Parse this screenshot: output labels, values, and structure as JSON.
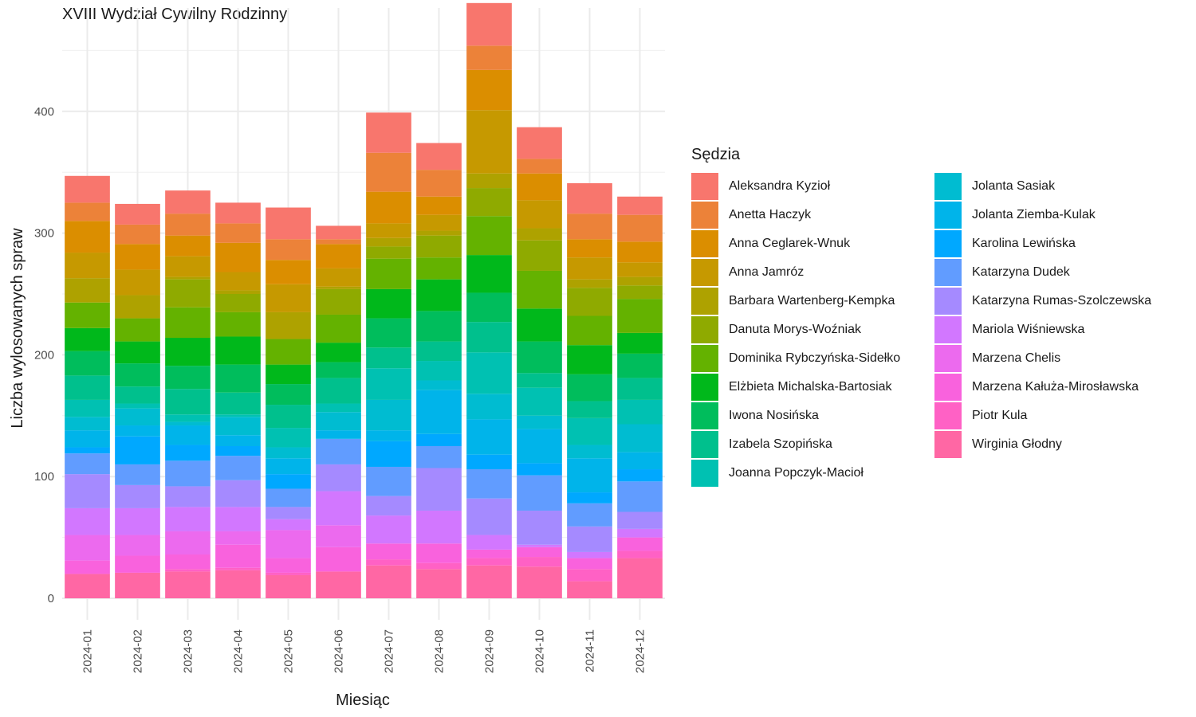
{
  "chart_data": {
    "type": "bar",
    "stacked": true,
    "title": "XVIII Wydział Cywilny Rodzinny",
    "xlabel": "Miesiąc",
    "ylabel": "Liczba wylosowanych spraw",
    "ylim": [
      0,
      480
    ],
    "yticks": [
      0,
      100,
      200,
      300,
      400
    ],
    "grid": true,
    "legend_title": "Sędzia",
    "legend_position": "right",
    "categories": [
      "2024-01",
      "2024-02",
      "2024-03",
      "2024-04",
      "2024-05",
      "2024-06",
      "2024-07",
      "2024-08",
      "2024-09",
      "2024-10",
      "2024-11",
      "2024-12"
    ],
    "series": [
      {
        "name": "Aleksandra Kyzioł",
        "color": "#F8766D",
        "values": [
          22,
          17,
          19,
          17,
          26,
          11,
          33,
          22,
          35,
          26,
          25,
          15
        ]
      },
      {
        "name": "Anetta Haczyk",
        "color": "#EC8239",
        "values": [
          15,
          16,
          18,
          16,
          17,
          4,
          32,
          22,
          20,
          12,
          21,
          22
        ]
      },
      {
        "name": "Anna Ceglarek-Wnuk",
        "color": "#DB8E00",
        "values": [
          26,
          21,
          17,
          24,
          20,
          20,
          26,
          15,
          33,
          22,
          15,
          17
        ]
      },
      {
        "name": "Anna Jamróz",
        "color": "#C69900",
        "values": [
          21,
          21,
          17,
          15,
          23,
          15,
          12,
          13,
          52,
          23,
          18,
          12
        ]
      },
      {
        "name": "Barbara Wartenberg-Kempka",
        "color": "#AEA200",
        "values": [
          20,
          19,
          2,
          3,
          22,
          2,
          7,
          4,
          12,
          10,
          7,
          7
        ]
      },
      {
        "name": "Danuta Morys-Woźniak",
        "color": "#8FAA00",
        "values": [
          0,
          0,
          23,
          15,
          0,
          21,
          10,
          18,
          23,
          25,
          23,
          11
        ]
      },
      {
        "name": "Dominika Rybczyńska-Sidełko",
        "color": "#64B200",
        "values": [
          21,
          19,
          25,
          20,
          21,
          23,
          25,
          18,
          32,
          31,
          24,
          28
        ]
      },
      {
        "name": "Elżbieta Michalska-Bartosiak",
        "color": "#00B81B",
        "values": [
          19,
          18,
          23,
          23,
          16,
          16,
          24,
          26,
          31,
          27,
          24,
          17
        ]
      },
      {
        "name": "Iwona Nosińska",
        "color": "#00BD5C",
        "values": [
          20,
          19,
          19,
          23,
          17,
          13,
          24,
          25,
          24,
          26,
          22,
          20
        ]
      },
      {
        "name": "Izabela Szopińska",
        "color": "#00C08D",
        "values": [
          20,
          14,
          21,
          18,
          19,
          21,
          17,
          16,
          25,
          12,
          14,
          18
        ]
      },
      {
        "name": "Joanna Popczyk-Macioł",
        "color": "#00C1B2",
        "values": [
          14,
          4,
          6,
          2,
          16,
          7,
          26,
          16,
          34,
          23,
          22,
          20
        ]
      },
      {
        "name": "Jolanta Sasiak",
        "color": "#00BCD1",
        "values": [
          11,
          14,
          3,
          15,
          9,
          15,
          25,
          8,
          21,
          11,
          11,
          23
        ]
      },
      {
        "name": "Jolanta Ziemba-Kulak",
        "color": "#00B4EA",
        "values": [
          14,
          9,
          16,
          9,
          13,
          7,
          9,
          36,
          29,
          28,
          28,
          14
        ]
      },
      {
        "name": "Karolina Lewińska",
        "color": "#00A8FF",
        "values": [
          5,
          23,
          13,
          8,
          12,
          0,
          21,
          10,
          12,
          10,
          9,
          10
        ]
      },
      {
        "name": "Katarzyna Dudek",
        "color": "#619CFF",
        "values": [
          17,
          17,
          21,
          20,
          15,
          21,
          24,
          18,
          24,
          29,
          19,
          25
        ]
      },
      {
        "name": "Katarzyna Rumas-Szolczewska",
        "color": "#A58AFF",
        "values": [
          28,
          19,
          17,
          22,
          10,
          22,
          16,
          35,
          30,
          28,
          21,
          14
        ]
      },
      {
        "name": "Mariola Wiśniewska",
        "color": "#D277FF",
        "values": [
          22,
          22,
          20,
          20,
          9,
          28,
          23,
          27,
          12,
          2,
          5,
          7
        ]
      },
      {
        "name": "Marzena Chelis",
        "color": "#EC6AEE",
        "values": [
          21,
          17,
          19,
          11,
          23,
          18,
          0,
          0,
          0,
          0,
          0,
          0
        ]
      },
      {
        "name": "Marzena Kałuża-Mirosławska",
        "color": "#F962DD",
        "values": [
          11,
          14,
          12,
          19,
          12,
          20,
          13,
          16,
          7,
          8,
          9,
          11
        ]
      },
      {
        "name": "Piotr Kula",
        "color": "#FF61C5",
        "values": [
          0,
          0,
          2,
          2,
          2,
          0,
          5,
          5,
          6,
          8,
          10,
          6
        ]
      },
      {
        "name": "Wirginia Głodny",
        "color": "#FF67A4",
        "values": [
          20,
          21,
          22,
          23,
          19,
          22,
          27,
          24,
          27,
          26,
          14,
          33
        ]
      }
    ]
  }
}
